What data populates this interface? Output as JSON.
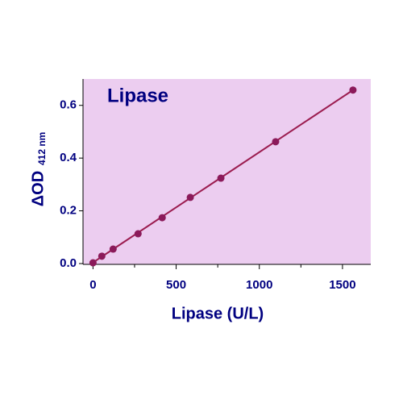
{
  "chart_data": {
    "type": "scatter",
    "title": "Lipase",
    "x_label": "Lipase (U/L)",
    "y_label": {
      "main": "ΔOD",
      "sub": "412 nm"
    },
    "x": [
      0,
      53,
      121,
      271,
      416,
      585,
      769,
      1098,
      1563
    ],
    "y": [
      0.003,
      0.028,
      0.055,
      0.113,
      0.174,
      0.251,
      0.324,
      0.462,
      0.658
    ],
    "color": "#8b1a5a",
    "fit": {
      "x": [
        0,
        1563
      ],
      "y": [
        0.004,
        0.658
      ],
      "color": "#9b1c4f"
    },
    "xlim": [
      -60,
      1670
    ],
    "ylim": [
      -0.003,
      0.7
    ],
    "xticks": [
      0,
      500,
      1000,
      1500
    ],
    "xminorticks": [
      250,
      750,
      1250
    ],
    "yticks": [
      {
        "value": 0,
        "label": "0.0"
      },
      0.2,
      0.4,
      0.6
    ],
    "plot_background": "#eccdf0"
  }
}
